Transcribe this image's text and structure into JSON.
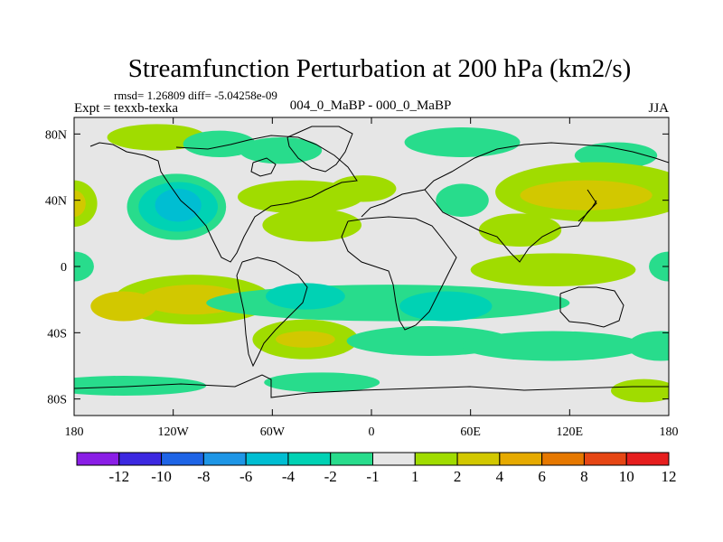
{
  "chart_data": {
    "type": "heatmap",
    "title": "Streamfunction Perturbation at 200 hPa (km2/s)",
    "stats": "rmsd= 1.26809 diff= -5.04258e-09",
    "experiment": "Expt = texxb-texka",
    "subtitle": "004_0_MaBP - 000_0_MaBP",
    "season": "JJA",
    "xlabel": "",
    "ylabel": "",
    "x_range": [
      -180,
      180
    ],
    "y_range": [
      -90,
      90
    ],
    "x_ticks": [
      {
        "value": -180,
        "label": "180"
      },
      {
        "value": -120,
        "label": "120W"
      },
      {
        "value": -60,
        "label": "60W"
      },
      {
        "value": 0,
        "label": "0"
      },
      {
        "value": 60,
        "label": "60E"
      },
      {
        "value": 120,
        "label": "120E"
      },
      {
        "value": 180,
        "label": "180"
      }
    ],
    "y_ticks": [
      {
        "value": 80,
        "label": "80N"
      },
      {
        "value": 40,
        "label": "40N"
      },
      {
        "value": 0,
        "label": "0"
      },
      {
        "value": -40,
        "label": "40S"
      },
      {
        "value": -80,
        "label": "80S"
      }
    ],
    "colorbar": {
      "labels": [
        "-12",
        "-10",
        "-8",
        "-6",
        "-4",
        "-2",
        "-1",
        "1",
        "2",
        "4",
        "6",
        "8",
        "10",
        "12"
      ],
      "colors": [
        "#8a1ee6",
        "#3c28e0",
        "#1e64e6",
        "#1e96e6",
        "#00bed2",
        "#00d2b4",
        "#28dc8c",
        "#e6e6e6",
        "#a0dc00",
        "#d2c800",
        "#e6aa00",
        "#e67800",
        "#e64614",
        "#e61e1e"
      ]
    },
    "blobs": [
      {
        "lon": -130,
        "lat": 78,
        "rlon": 30,
        "rlat": 8,
        "color": "#a0dc00"
      },
      {
        "lon": -92,
        "lat": 74,
        "rlon": 22,
        "rlat": 8,
        "color": "#28dc8c"
      },
      {
        "lon": -55,
        "lat": 70,
        "rlon": 25,
        "rlat": 8,
        "color": "#28dc8c"
      },
      {
        "lon": 55,
        "lat": 75,
        "rlon": 35,
        "rlat": 9,
        "color": "#28dc8c"
      },
      {
        "lon": 148,
        "lat": 67,
        "rlon": 25,
        "rlat": 8,
        "color": "#28dc8c"
      },
      {
        "lon": -180,
        "lat": 38,
        "rlon": 14,
        "rlat": 14,
        "color": "#a0dc00"
      },
      {
        "lon": -180,
        "lat": 38,
        "rlon": 7,
        "rlat": 8,
        "color": "#d2c800"
      },
      {
        "lon": -118,
        "lat": 36,
        "rlon": 30,
        "rlat": 20,
        "color": "#28dc8c"
      },
      {
        "lon": -117,
        "lat": 36,
        "rlon": 24,
        "rlat": 15,
        "color": "#00d2b4"
      },
      {
        "lon": -117,
        "lat": 37,
        "rlon": 14,
        "rlat": 10,
        "color": "#00bed2"
      },
      {
        "lon": -43,
        "lat": 42,
        "rlon": 38,
        "rlat": 10,
        "color": "#a0dc00"
      },
      {
        "lon": -36,
        "lat": 25,
        "rlon": 30,
        "rlat": 10,
        "color": "#a0dc00"
      },
      {
        "lon": -5,
        "lat": 47,
        "rlon": 20,
        "rlat": 8,
        "color": "#a0dc00"
      },
      {
        "lon": 55,
        "lat": 40,
        "rlon": 16,
        "rlat": 10,
        "color": "#28dc8c"
      },
      {
        "lon": 135,
        "lat": 45,
        "rlon": 60,
        "rlat": 18,
        "color": "#a0dc00"
      },
      {
        "lon": 130,
        "lat": 43,
        "rlon": 40,
        "rlat": 9,
        "color": "#d2c800"
      },
      {
        "lon": 90,
        "lat": 22,
        "rlon": 25,
        "rlat": 10,
        "color": "#a0dc00"
      },
      {
        "lon": -180,
        "lat": 0,
        "rlon": 12,
        "rlat": 9,
        "color": "#28dc8c"
      },
      {
        "lon": 180,
        "lat": 0,
        "rlon": 12,
        "rlat": 9,
        "color": "#28dc8c"
      },
      {
        "lon": -108,
        "lat": -20,
        "rlon": 48,
        "rlat": 15,
        "color": "#a0dc00"
      },
      {
        "lon": -108,
        "lat": -20,
        "rlon": 32,
        "rlat": 9,
        "color": "#d2c800"
      },
      {
        "lon": -150,
        "lat": -24,
        "rlon": 20,
        "rlat": 9,
        "color": "#d2c800"
      },
      {
        "lon": 110,
        "lat": -2,
        "rlon": 50,
        "rlat": 10,
        "color": "#a0dc00"
      },
      {
        "lon": 10,
        "lat": -22,
        "rlon": 110,
        "rlat": 11,
        "color": "#28dc8c"
      },
      {
        "lon": -40,
        "lat": -18,
        "rlon": 24,
        "rlat": 8,
        "color": "#00d2b4"
      },
      {
        "lon": 45,
        "lat": -24,
        "rlon": 28,
        "rlat": 9,
        "color": "#00d2b4"
      },
      {
        "lon": -40,
        "lat": -44,
        "rlon": 32,
        "rlat": 12,
        "color": "#a0dc00"
      },
      {
        "lon": -40,
        "lat": -44,
        "rlon": 18,
        "rlat": 5,
        "color": "#d2c800"
      },
      {
        "lon": 35,
        "lat": -45,
        "rlon": 50,
        "rlat": 9,
        "color": "#28dc8c"
      },
      {
        "lon": 110,
        "lat": -48,
        "rlon": 55,
        "rlat": 9,
        "color": "#28dc8c"
      },
      {
        "lon": 175,
        "lat": -48,
        "rlon": 20,
        "rlat": 9,
        "color": "#28dc8c"
      },
      {
        "lon": -150,
        "lat": -72,
        "rlon": 50,
        "rlat": 6,
        "color": "#28dc8c"
      },
      {
        "lon": -30,
        "lat": -70,
        "rlon": 35,
        "rlat": 6,
        "color": "#28dc8c"
      },
      {
        "lon": 165,
        "lat": -75,
        "rlon": 20,
        "rlat": 7,
        "color": "#a0dc00"
      }
    ]
  }
}
